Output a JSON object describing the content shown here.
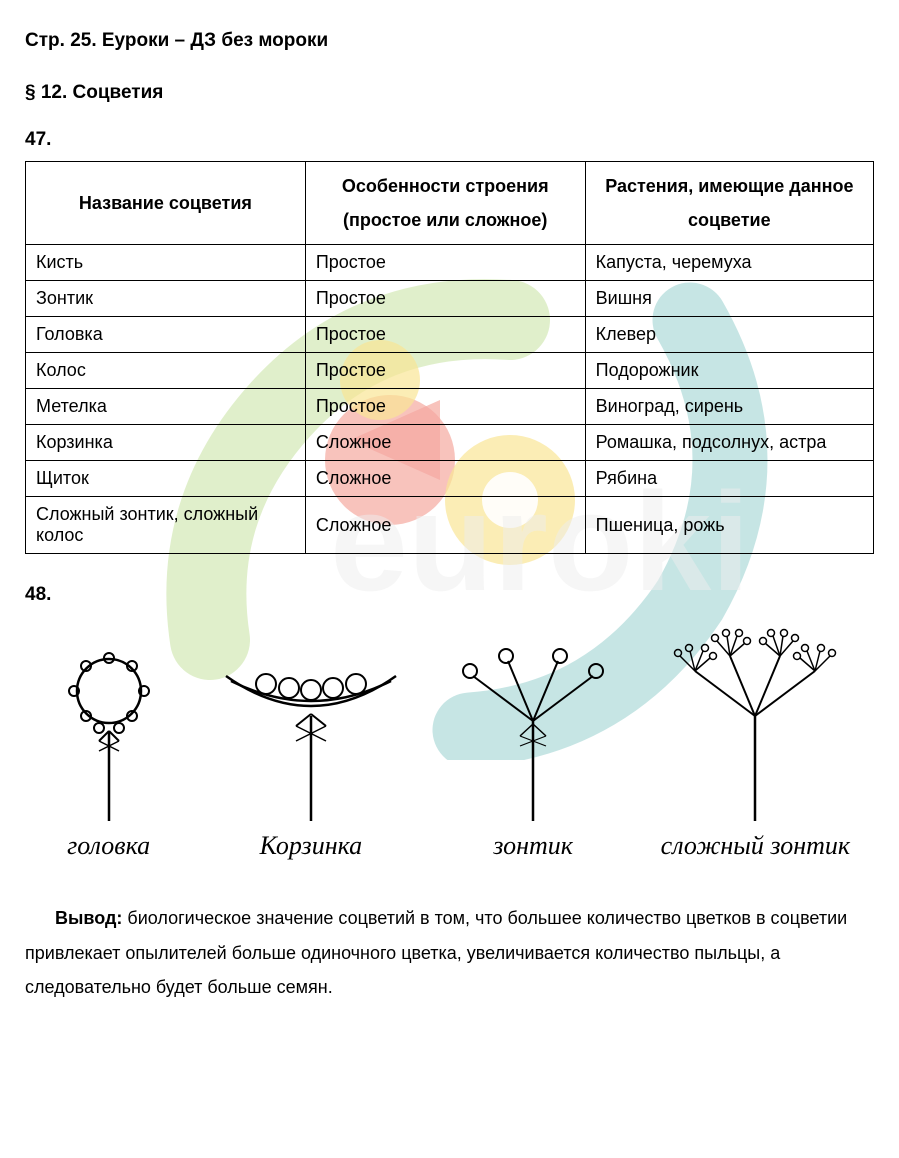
{
  "page_title": "Стр. 25. Еуроки – ДЗ без мороки",
  "section_title": "§ 12. Соцветия",
  "exercise47": "47.",
  "exercise48": "48.",
  "table": {
    "headers": {
      "col1": "Название соцветия",
      "col2": "Особенности строения (простое или сложное)",
      "col3": "Растения, имеющие данное соцветие"
    },
    "rows": [
      {
        "name": "Кисть",
        "type": "Простое",
        "plants": "Капуста, черемуха"
      },
      {
        "name": "Зонтик",
        "type": "Простое",
        "plants": "Вишня"
      },
      {
        "name": "Головка",
        "type": "Простое",
        "plants": "Клевер"
      },
      {
        "name": "Колос",
        "type": "Простое",
        "plants": "Подорожник"
      },
      {
        "name": "Метелка",
        "type": "Простое",
        "plants": "Виноград, сирень"
      },
      {
        "name": "Корзинка",
        "type": "Сложное",
        "plants": "Ромашка, подсолнух, астра"
      },
      {
        "name": "Щиток",
        "type": "Сложное",
        "plants": "Рябина"
      },
      {
        "name": "Сложный зонтик, сложный колос",
        "type": "Сложное",
        "plants": "Пшеница, рожь"
      }
    ]
  },
  "diagrams": {
    "labels": [
      "головка",
      "Корзинка",
      "зонтик",
      "сложный зонтик"
    ]
  },
  "conclusion": {
    "label": "Вывод:",
    "text": " биологическое значение соцветий в том, что большее количество цветков в соцветии привлекает опылителей больше одиночного цветка, увеличивается количество пыльцы, а следовательно будет больше семян."
  },
  "watermark": {
    "colors": {
      "red": "#e8412f",
      "yellow": "#f3c817",
      "teal": "#2da29f",
      "green": "#8ec641",
      "gray": "#d8d8d8"
    }
  }
}
